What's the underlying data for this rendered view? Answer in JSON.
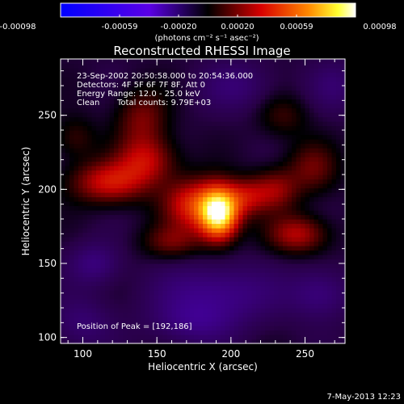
{
  "colorbar": {
    "ticks": [
      "-0.00098",
      "-0.00059",
      "-0.00020",
      "0.00020",
      "0.00059",
      "0.00098"
    ],
    "unit_label": "(photons cm⁻² s⁻¹ asec⁻²)"
  },
  "footer": {
    "date": "7-May-2013 12:23"
  },
  "chart_data": {
    "type": "heatmap",
    "title": "Reconstructed RHESSI Image",
    "xlabel": "Heliocentric X (arcsec)",
    "ylabel": "Heliocentric Y (arcsec)",
    "xlim": [
      85,
      277
    ],
    "ylim": [
      96,
      288
    ],
    "xticks": [
      "100",
      "150",
      "200",
      "250"
    ],
    "yticks": [
      "100",
      "150",
      "200",
      "250"
    ],
    "color_range": [
      -0.00098,
      0.00098
    ],
    "annotations": {
      "time_range": "23-Sep-2002 20:50:58.000 to 20:54:36.000",
      "detectors": "Detectors: 4F 5F 6F 7F 8F, Att 0",
      "energy": "Energy Range: 12.0 - 25.0 keV",
      "method": "Clean",
      "counts": "Total counts: 9.79E+03",
      "peak": "Position of Peak = [192,186]"
    },
    "peak": {
      "x": 192,
      "y": 186
    },
    "sources": [
      {
        "x": 192,
        "y": 184,
        "sx": 9,
        "sy": 12,
        "amp": 0.00098
      },
      {
        "x": 175,
        "y": 190,
        "sx": 14,
        "sy": 12,
        "amp": 0.00045
      },
      {
        "x": 210,
        "y": 195,
        "sx": 10,
        "sy": 9,
        "amp": 0.0003
      },
      {
        "x": 118,
        "y": 205,
        "sx": 18,
        "sy": 10,
        "amp": 0.0004
      },
      {
        "x": 143,
        "y": 220,
        "sx": 14,
        "sy": 11,
        "amp": 0.00033
      },
      {
        "x": 140,
        "y": 248,
        "sx": 12,
        "sy": 14,
        "amp": 0.00025
      },
      {
        "x": 230,
        "y": 200,
        "sx": 11,
        "sy": 10,
        "amp": 0.00028
      },
      {
        "x": 255,
        "y": 215,
        "sx": 12,
        "sy": 12,
        "amp": 0.00022
      },
      {
        "x": 245,
        "y": 170,
        "sx": 14,
        "sy": 9,
        "amp": 0.00034
      },
      {
        "x": 160,
        "y": 165,
        "sx": 14,
        "sy": 8,
        "amp": 0.00022
      },
      {
        "x": 235,
        "y": 250,
        "sx": 12,
        "sy": 10,
        "amp": 0.00015
      },
      {
        "x": 95,
        "y": 235,
        "sx": 10,
        "sy": 10,
        "amp": 0.00015
      },
      {
        "x": 108,
        "y": 150,
        "sx": 12,
        "sy": 10,
        "amp": -0.00018
      },
      {
        "x": 190,
        "y": 130,
        "sx": 28,
        "sy": 14,
        "amp": -0.00022
      },
      {
        "x": 175,
        "y": 110,
        "sx": 20,
        "sy": 10,
        "amp": -0.00016
      },
      {
        "x": 260,
        "y": 130,
        "sx": 14,
        "sy": 12,
        "amp": -0.00018
      },
      {
        "x": 205,
        "y": 270,
        "sx": 18,
        "sy": 12,
        "amp": -0.00014
      },
      {
        "x": 270,
        "y": 270,
        "sx": 12,
        "sy": 12,
        "amp": -0.00012
      },
      {
        "x": 100,
        "y": 110,
        "sx": 14,
        "sy": 12,
        "amp": -0.00014
      }
    ]
  }
}
